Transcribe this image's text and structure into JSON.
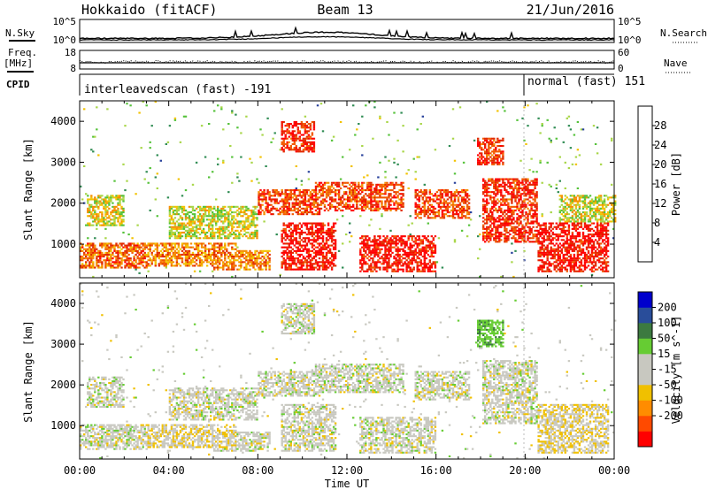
{
  "header": {
    "station": "Hokkaido (fitACF)",
    "beam": "Beam 13",
    "date": "21/Jun/2016"
  },
  "strips": {
    "nsky_label": "N.Sky",
    "nsky_ticks": [
      "10^5",
      "10^0"
    ],
    "nsearch_label": "N.Search",
    "nsearch_ticks": [
      "10^5",
      "10^0"
    ],
    "freq_label": "Freq.",
    "freq_unit": "[MHz]",
    "freq_ticks": [
      "18",
      "8"
    ],
    "nave_label": "Nave",
    "nave_ticks": [
      "60",
      "0"
    ],
    "cpid_label": "CPID",
    "cpid_segments": [
      "interleavedscan (fast) -191",
      "normal (fast) 151"
    ]
  },
  "colors": {
    "power": [
      "#0000ff",
      "#27409b",
      "#2f8c53",
      "#55c23a",
      "#a8d648",
      "#f2c200",
      "#f58e00",
      "#f25a00",
      "#e12a00",
      "#ff0000"
    ],
    "velocity": [
      "#ff0000",
      "#ff4a00",
      "#ff8c00",
      "#f0c000",
      "#c8c8c0",
      "#c8c8c0",
      "#66cc33",
      "#3c7a40",
      "#294d9a",
      "#0000cc"
    ]
  },
  "chart_data": [
    {
      "type": "heatmap",
      "variable": "power",
      "xlabel": "",
      "ylabel": "Slant Range [km]",
      "xlim": [
        "00:00",
        "24:00"
      ],
      "ylim": [
        180,
        4500
      ],
      "yticks": [
        1000,
        2000,
        3000,
        4000
      ],
      "colorbar_label": "Power [dB]",
      "colorbar_ticks": [
        4,
        8,
        12,
        16,
        20,
        24,
        28
      ],
      "colorbar_range": [
        0,
        32
      ],
      "echo_regions": [
        {
          "t": [
            0.0,
            3.0
          ],
          "range": [
            400,
            1000
          ],
          "power": 24
        },
        {
          "t": [
            0.3,
            2.0
          ],
          "range": [
            1400,
            2200
          ],
          "power": 16
        },
        {
          "t": [
            2.5,
            7.0
          ],
          "range": [
            450,
            1000
          ],
          "power": 22
        },
        {
          "t": [
            4.0,
            8.0
          ],
          "range": [
            1100,
            1900
          ],
          "power": 16
        },
        {
          "t": [
            6.0,
            8.5
          ],
          "range": [
            350,
            850
          ],
          "power": 22
        },
        {
          "t": [
            8.0,
            10.8
          ],
          "range": [
            1700,
            2300
          ],
          "power": 26
        },
        {
          "t": [
            9.0,
            10.5
          ],
          "range": [
            3200,
            4000
          ],
          "power": 28
        },
        {
          "t": [
            9.0,
            11.5
          ],
          "range": [
            350,
            1500
          ],
          "power": 30
        },
        {
          "t": [
            10.5,
            14.5
          ],
          "range": [
            1800,
            2500
          ],
          "power": 26
        },
        {
          "t": [
            12.5,
            16.0
          ],
          "range": [
            300,
            1200
          ],
          "power": 30
        },
        {
          "t": [
            15.0,
            17.5
          ],
          "range": [
            1600,
            2300
          ],
          "power": 26
        },
        {
          "t": [
            17.8,
            19.0
          ],
          "range": [
            2900,
            3600
          ],
          "power": 28
        },
        {
          "t": [
            18.0,
            20.5
          ],
          "range": [
            1000,
            2600
          ],
          "power": 28
        },
        {
          "t": [
            20.5,
            23.7
          ],
          "range": [
            300,
            1500
          ],
          "power": 30
        },
        {
          "t": [
            21.5,
            24.0
          ],
          "range": [
            1500,
            2200
          ],
          "power": 16
        }
      ]
    },
    {
      "type": "heatmap",
      "variable": "velocity",
      "xlabel": "Time UT",
      "ylabel": "Slant Range [km]",
      "xlim": [
        "00:00",
        "24:00"
      ],
      "xticks": [
        "00:00",
        "04:00",
        "08:00",
        "12:00",
        "16:00",
        "20:00",
        "00:00"
      ],
      "ylim": [
        180,
        4500
      ],
      "yticks": [
        1000,
        2000,
        3000,
        4000
      ],
      "colorbar_label": "Velocity [m s^-1]",
      "colorbar_ticks": [
        200,
        100,
        50,
        15,
        -15,
        -50,
        -100,
        -200
      ],
      "colorbar_range": [
        -250,
        250
      ],
      "echo_regions": [
        {
          "t": [
            0.0,
            3.0
          ],
          "range": [
            400,
            1000
          ],
          "velocity": 0
        },
        {
          "t": [
            0.3,
            2.0
          ],
          "range": [
            1400,
            2200
          ],
          "velocity": 0
        },
        {
          "t": [
            2.5,
            7.0
          ],
          "range": [
            450,
            1000
          ],
          "velocity": -10
        },
        {
          "t": [
            4.0,
            8.0
          ],
          "range": [
            1100,
            1900
          ],
          "velocity": 0
        },
        {
          "t": [
            6.0,
            8.5
          ],
          "range": [
            350,
            850
          ],
          "velocity": 0
        },
        {
          "t": [
            8.0,
            10.8
          ],
          "range": [
            1700,
            2300
          ],
          "velocity": 0
        },
        {
          "t": [
            9.0,
            10.5
          ],
          "range": [
            3200,
            4000
          ],
          "velocity": 0
        },
        {
          "t": [
            9.0,
            11.5
          ],
          "range": [
            350,
            1500
          ],
          "velocity": 0
        },
        {
          "t": [
            10.5,
            14.5
          ],
          "range": [
            1800,
            2500
          ],
          "velocity": 0
        },
        {
          "t": [
            12.5,
            16.0
          ],
          "range": [
            300,
            1200
          ],
          "velocity": 0
        },
        {
          "t": [
            13.0,
            14.2
          ],
          "range": [
            500,
            700
          ],
          "velocity": 40
        },
        {
          "t": [
            15.0,
            17.5
          ],
          "range": [
            1600,
            2300
          ],
          "velocity": 0
        },
        {
          "t": [
            17.8,
            19.0
          ],
          "range": [
            2900,
            3600
          ],
          "velocity": 40
        },
        {
          "t": [
            18.0,
            20.5
          ],
          "range": [
            1000,
            2600
          ],
          "velocity": 0
        },
        {
          "t": [
            20.5,
            23.7
          ],
          "range": [
            300,
            1500
          ],
          "velocity": -10
        }
      ]
    }
  ]
}
